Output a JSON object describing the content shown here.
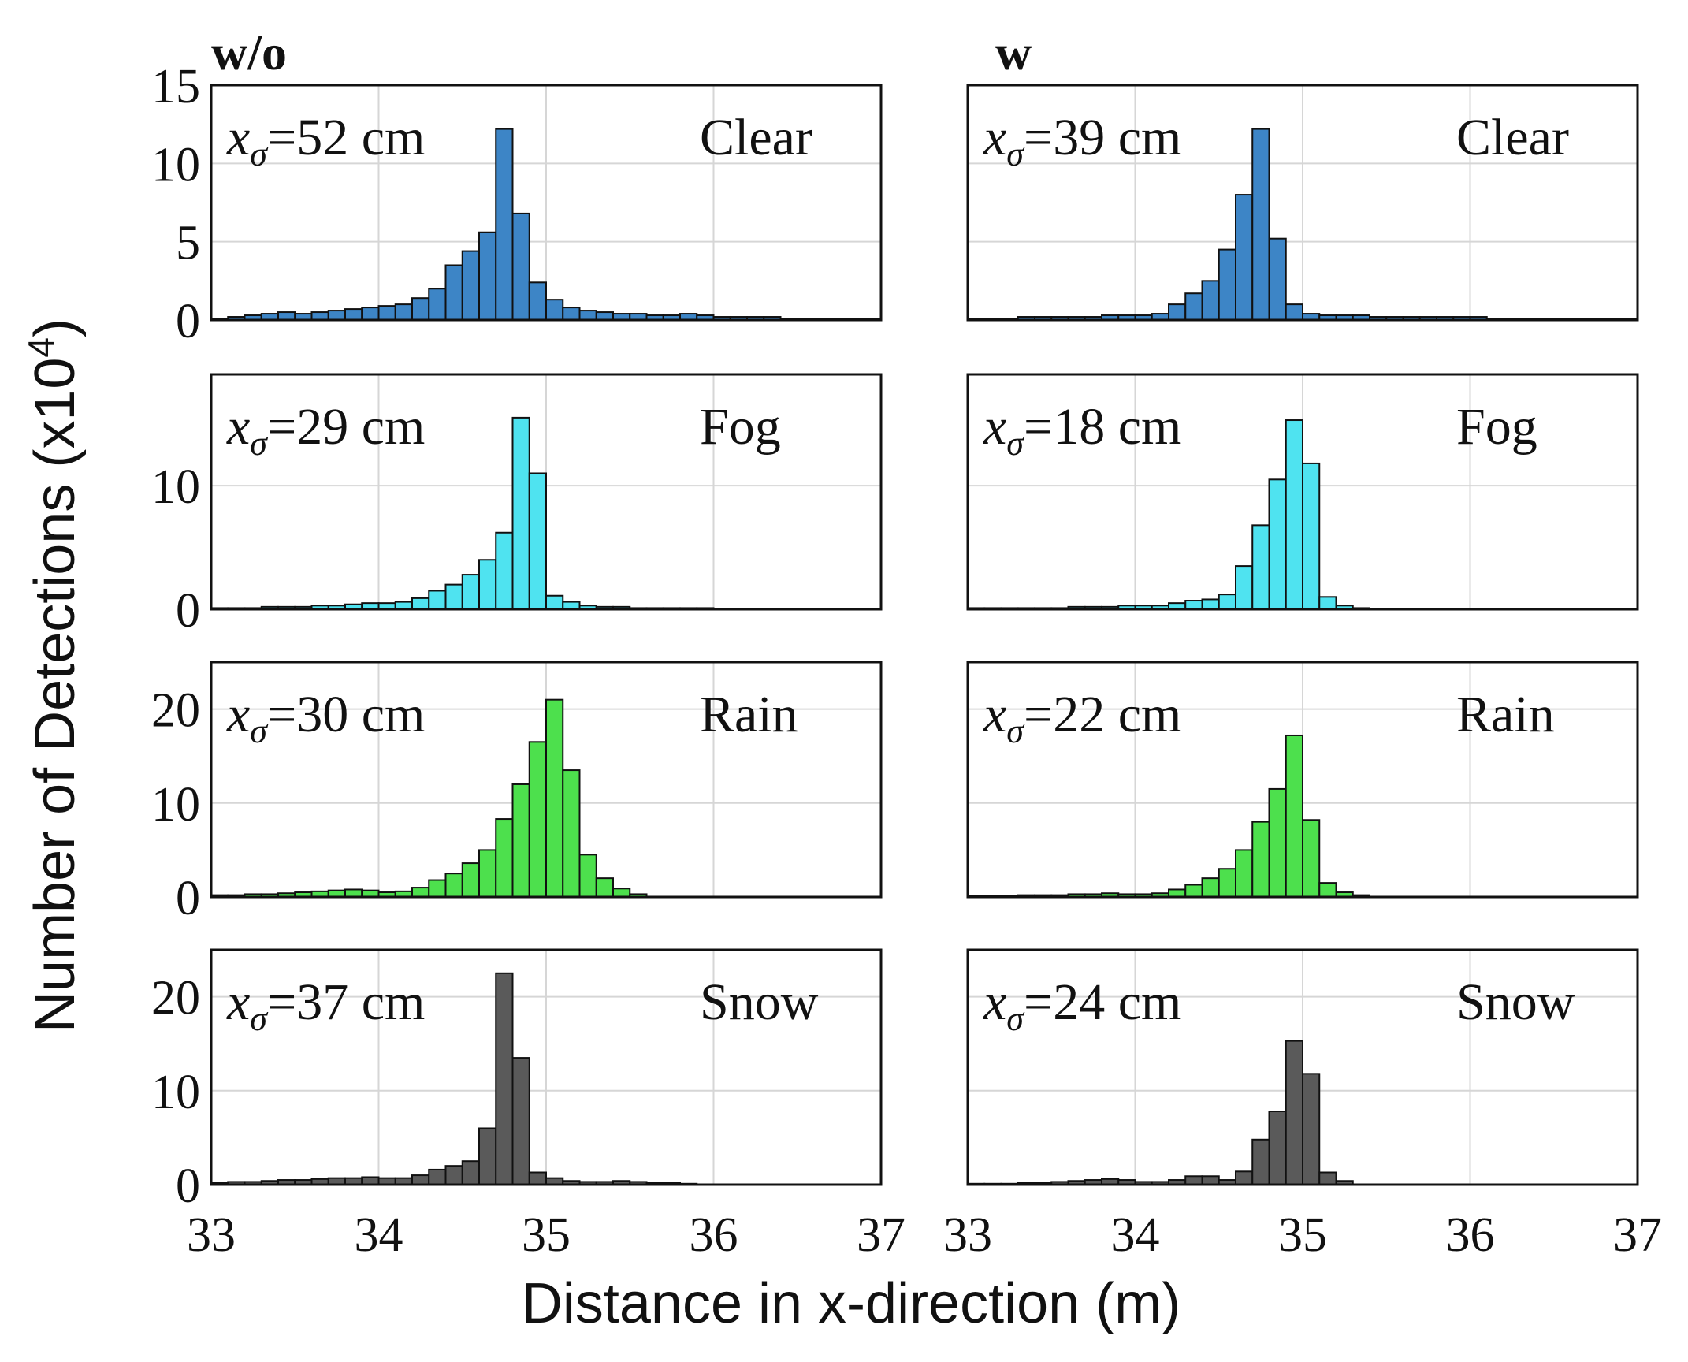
{
  "chart_data": {
    "type": "bar",
    "xlabel": "Distance in x-direction (m)",
    "ylabel": "Number of Detections (x10",
    "ylabel_exp": "4",
    "ylabel_close": ")",
    "xlim": [
      33,
      37
    ],
    "xticks": [
      "33",
      "34",
      "35",
      "36",
      "37"
    ],
    "bin_width": 0.1,
    "grid": true,
    "columns": [
      "w/o",
      "w"
    ],
    "panels": [
      {
        "column": "w/o",
        "row": 0,
        "condition": "Clear",
        "sigma_value": "=52 cm",
        "color": "#3d85c6",
        "ylim": [
          0,
          15
        ],
        "yticks": [
          "0",
          "5",
          "10",
          "15"
        ],
        "x": [
          33.05,
          33.15,
          33.25,
          33.35,
          33.45,
          33.55,
          33.65,
          33.75,
          33.85,
          33.95,
          34.05,
          34.15,
          34.25,
          34.35,
          34.45,
          34.55,
          34.65,
          34.75,
          34.85,
          34.95,
          35.05,
          35.15,
          35.25,
          35.35,
          35.45,
          35.55,
          35.65,
          35.75,
          35.85,
          35.95,
          36.05,
          36.15,
          36.25,
          36.35,
          36.45,
          36.55,
          36.65,
          36.75,
          36.85,
          36.95
        ],
        "values": [
          0.1,
          0.2,
          0.3,
          0.4,
          0.5,
          0.4,
          0.5,
          0.6,
          0.7,
          0.8,
          0.9,
          1.0,
          1.4,
          2.0,
          3.5,
          4.4,
          5.6,
          12.2,
          6.8,
          2.4,
          1.3,
          0.8,
          0.6,
          0.5,
          0.4,
          0.4,
          0.3,
          0.3,
          0.4,
          0.3,
          0.2,
          0.2,
          0.2,
          0.2,
          0.1,
          0.1,
          0.1,
          0.1,
          0.1,
          0.1
        ]
      },
      {
        "column": "w",
        "row": 0,
        "condition": "Clear",
        "sigma_value": "=39 cm",
        "color": "#3d85c6",
        "ylim": [
          0,
          15
        ],
        "yticks": [
          "0",
          "5",
          "10",
          "15"
        ],
        "x": [
          33.05,
          33.15,
          33.25,
          33.35,
          33.45,
          33.55,
          33.65,
          33.75,
          33.85,
          33.95,
          34.05,
          34.15,
          34.25,
          34.35,
          34.45,
          34.55,
          34.65,
          34.75,
          34.85,
          34.95,
          35.05,
          35.15,
          35.25,
          35.35,
          35.45,
          35.55,
          35.65,
          35.75,
          35.85,
          35.95,
          36.05,
          36.15,
          36.25,
          36.35,
          36.45,
          36.55,
          36.65,
          36.75,
          36.85,
          36.95
        ],
        "values": [
          0.1,
          0.1,
          0.1,
          0.2,
          0.2,
          0.2,
          0.2,
          0.2,
          0.3,
          0.3,
          0.3,
          0.4,
          1.0,
          1.7,
          2.5,
          4.5,
          8.0,
          12.2,
          5.2,
          1.0,
          0.4,
          0.3,
          0.3,
          0.3,
          0.2,
          0.2,
          0.2,
          0.2,
          0.2,
          0.2,
          0.2,
          0.1,
          0.1,
          0.1,
          0.1,
          0.1,
          0.1,
          0.1,
          0.1,
          0.1
        ]
      },
      {
        "column": "w/o",
        "row": 1,
        "condition": "Fog",
        "sigma_value": "=29 cm",
        "color": "#4fe3f0",
        "ylim": [
          0,
          19
        ],
        "yticks": [
          "0",
          "10"
        ],
        "x": [
          33.05,
          33.15,
          33.25,
          33.35,
          33.45,
          33.55,
          33.65,
          33.75,
          33.85,
          33.95,
          34.05,
          34.15,
          34.25,
          34.35,
          34.45,
          34.55,
          34.65,
          34.75,
          34.85,
          34.95,
          35.05,
          35.15,
          35.25,
          35.35,
          35.45,
          35.55,
          35.65,
          35.75,
          35.85,
          35.95
        ],
        "values": [
          0.1,
          0.1,
          0.1,
          0.2,
          0.2,
          0.2,
          0.3,
          0.3,
          0.4,
          0.5,
          0.5,
          0.6,
          0.9,
          1.5,
          2.0,
          2.8,
          4.0,
          6.2,
          15.5,
          11.0,
          1.1,
          0.6,
          0.3,
          0.2,
          0.2,
          0.1,
          0.1,
          0.1,
          0.1,
          0.1
        ]
      },
      {
        "column": "w",
        "row": 1,
        "condition": "Fog",
        "sigma_value": "=18 cm",
        "color": "#4fe3f0",
        "ylim": [
          0,
          19
        ],
        "yticks": [
          "0",
          "10"
        ],
        "x": [
          33.05,
          33.15,
          33.25,
          33.35,
          33.45,
          33.55,
          33.65,
          33.75,
          33.85,
          33.95,
          34.05,
          34.15,
          34.25,
          34.35,
          34.45,
          34.55,
          34.65,
          34.75,
          34.85,
          34.95,
          35.05,
          35.15,
          35.25,
          35.35
        ],
        "values": [
          0.1,
          0.1,
          0.1,
          0.1,
          0.1,
          0.1,
          0.2,
          0.2,
          0.2,
          0.3,
          0.3,
          0.3,
          0.5,
          0.7,
          0.8,
          1.2,
          3.5,
          6.8,
          10.5,
          15.3,
          11.8,
          1.0,
          0.3,
          0.1
        ]
      },
      {
        "column": "w/o",
        "row": 2,
        "condition": "Rain",
        "sigma_value": "=30 cm",
        "color": "#4de04d",
        "ylim": [
          0,
          25
        ],
        "yticks": [
          "0",
          "10",
          "20"
        ],
        "x": [
          33.05,
          33.15,
          33.25,
          33.35,
          33.45,
          33.55,
          33.65,
          33.75,
          33.85,
          33.95,
          34.05,
          34.15,
          34.25,
          34.35,
          34.45,
          34.55,
          34.65,
          34.75,
          34.85,
          34.95,
          35.05,
          35.15,
          35.25,
          35.35,
          35.45,
          35.55
        ],
        "values": [
          0.2,
          0.2,
          0.3,
          0.3,
          0.4,
          0.5,
          0.6,
          0.7,
          0.8,
          0.7,
          0.5,
          0.6,
          1.0,
          1.8,
          2.5,
          3.6,
          5.0,
          8.3,
          12.0,
          16.5,
          21.0,
          13.5,
          4.5,
          2.0,
          0.9,
          0.3
        ]
      },
      {
        "column": "w",
        "row": 2,
        "condition": "Rain",
        "sigma_value": "=22 cm",
        "color": "#4de04d",
        "ylim": [
          0,
          25
        ],
        "yticks": [
          "0",
          "10",
          "20"
        ],
        "x": [
          33.05,
          33.15,
          33.25,
          33.35,
          33.45,
          33.55,
          33.65,
          33.75,
          33.85,
          33.95,
          34.05,
          34.15,
          34.25,
          34.35,
          34.45,
          34.55,
          34.65,
          34.75,
          34.85,
          34.95,
          35.05,
          35.15,
          35.25,
          35.35
        ],
        "values": [
          0.1,
          0.1,
          0.1,
          0.2,
          0.2,
          0.2,
          0.3,
          0.3,
          0.4,
          0.3,
          0.3,
          0.4,
          0.8,
          1.3,
          2.0,
          3.0,
          5.0,
          8.0,
          11.5,
          17.2,
          8.2,
          1.5,
          0.5,
          0.2
        ]
      },
      {
        "column": "w/o",
        "row": 3,
        "condition": "Snow",
        "sigma_value": "=37 cm",
        "color": "#5a5a5a",
        "ylim": [
          0,
          25
        ],
        "yticks": [
          "0",
          "10",
          "20"
        ],
        "x": [
          33.05,
          33.15,
          33.25,
          33.35,
          33.45,
          33.55,
          33.65,
          33.75,
          33.85,
          33.95,
          34.05,
          34.15,
          34.25,
          34.35,
          34.45,
          34.55,
          34.65,
          34.75,
          34.85,
          34.95,
          35.05,
          35.15,
          35.25,
          35.35,
          35.45,
          35.55,
          35.65,
          35.75,
          35.85
        ],
        "values": [
          0.2,
          0.3,
          0.3,
          0.4,
          0.5,
          0.5,
          0.6,
          0.7,
          0.7,
          0.8,
          0.7,
          0.7,
          1.0,
          1.6,
          2.0,
          2.5,
          6.0,
          22.5,
          13.5,
          1.3,
          0.7,
          0.4,
          0.3,
          0.3,
          0.4,
          0.3,
          0.2,
          0.2,
          0.1
        ]
      },
      {
        "column": "w",
        "row": 3,
        "condition": "Snow",
        "sigma_value": "=24 cm",
        "color": "#5a5a5a",
        "ylim": [
          0,
          25
        ],
        "yticks": [
          "0",
          "10",
          "20"
        ],
        "x": [
          33.05,
          33.15,
          33.25,
          33.35,
          33.45,
          33.55,
          33.65,
          33.75,
          33.85,
          33.95,
          34.05,
          34.15,
          34.25,
          34.35,
          34.45,
          34.55,
          34.65,
          34.75,
          34.85,
          34.95,
          35.05,
          35.15,
          35.25
        ],
        "values": [
          0.1,
          0.1,
          0.1,
          0.2,
          0.2,
          0.3,
          0.4,
          0.5,
          0.6,
          0.5,
          0.3,
          0.3,
          0.5,
          0.9,
          0.9,
          0.5,
          1.4,
          4.8,
          7.8,
          15.3,
          11.8,
          1.3,
          0.4
        ]
      }
    ]
  }
}
